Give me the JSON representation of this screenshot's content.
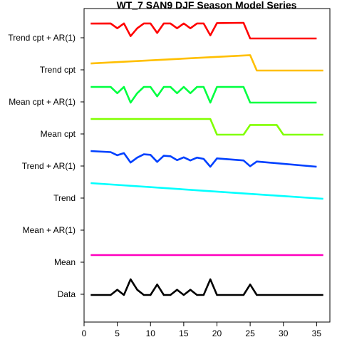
{
  "chart_data": {
    "type": "line",
    "title": "WT_7 SAN9 DJF Season Model Series",
    "xlabel": "",
    "ylabel": "",
    "xlim": [
      0,
      37
    ],
    "xticks": [
      0,
      5,
      10,
      15,
      20,
      25,
      30,
      35
    ],
    "grid": false,
    "legend": "none",
    "x": [
      1,
      2,
      3,
      4,
      5,
      6,
      7,
      8,
      9,
      10,
      11,
      12,
      13,
      14,
      15,
      16,
      17,
      18,
      19,
      20,
      21,
      22,
      23,
      24,
      25,
      26,
      27,
      28,
      29,
      30,
      31,
      32,
      33,
      34,
      35,
      36
    ],
    "rows": [
      {
        "label": "Trend cpt + AR(1)",
        "color": "#ff0000",
        "x": [
          1,
          4,
          5,
          6,
          7,
          8,
          9,
          10,
          11,
          12,
          13,
          14,
          15,
          16,
          17,
          18,
          19,
          20,
          24,
          25,
          35
        ],
        "values": [
          0.95,
          0.96,
          0.65,
          0.96,
          0.15,
          0.65,
          0.96,
          0.96,
          0.35,
          0.96,
          0.96,
          0.65,
          0.96,
          0.65,
          0.96,
          0.96,
          0.2,
          0.98,
          1.0,
          0.0,
          0.0
        ]
      },
      {
        "label": "Trend cpt",
        "color": "#ffbf00",
        "x": [
          1,
          25,
          26,
          36
        ],
        "values": [
          0.45,
          0.98,
          0.0,
          0.0
        ]
      },
      {
        "label": "Mean cpt + AR(1)",
        "color": "#00ff40",
        "x": [
          1,
          4,
          5,
          6,
          7,
          8,
          9,
          10,
          11,
          12,
          13,
          14,
          15,
          16,
          17,
          18,
          19,
          20,
          24,
          25,
          35
        ],
        "values": [
          1.0,
          1.0,
          0.6,
          1.0,
          0.0,
          0.6,
          1.0,
          1.0,
          0.4,
          1.0,
          1.0,
          0.6,
          1.0,
          0.6,
          1.0,
          1.0,
          0.0,
          1.0,
          1.0,
          0.0,
          0.0
        ]
      },
      {
        "label": "Mean cpt",
        "color": "#80ff00",
        "x": [
          1,
          19,
          20,
          24,
          25,
          29,
          30,
          36
        ],
        "values": [
          1.0,
          1.0,
          0.0,
          0.0,
          0.62,
          0.62,
          0.0,
          0.0
        ]
      },
      {
        "label": "Trend + AR(1)",
        "color": "#0040ff",
        "x": [
          1,
          4,
          5,
          6,
          7,
          8,
          9,
          10,
          11,
          12,
          13,
          14,
          15,
          16,
          17,
          18,
          19,
          20,
          24,
          25,
          26,
          35
        ],
        "values": [
          1.0,
          0.93,
          0.73,
          0.87,
          0.27,
          0.58,
          0.79,
          0.76,
          0.31,
          0.7,
          0.67,
          0.42,
          0.6,
          0.4,
          0.58,
          0.5,
          0.0,
          0.53,
          0.4,
          0.03,
          0.33,
          0.0
        ]
      },
      {
        "label": "Trend",
        "color": "#00ffff",
        "x": [
          1,
          36
        ],
        "values": [
          1.0,
          0.0
        ]
      },
      {
        "label": "Mean + AR(1)",
        "color": "#0080ff",
        "x": [],
        "values": []
      },
      {
        "label": "Mean",
        "color": "#ff00bf",
        "x": [
          1,
          36
        ],
        "values": [
          0.5,
          0.5
        ]
      },
      {
        "label": "Data",
        "color": "#000000",
        "x": [
          1,
          4,
          5,
          6,
          7,
          8,
          9,
          10,
          11,
          12,
          13,
          14,
          15,
          16,
          17,
          18,
          19,
          20,
          24,
          25,
          26,
          36
        ],
        "values": [
          0.0,
          0.0,
          0.33,
          0.0,
          1.0,
          0.33,
          0.0,
          0.0,
          0.67,
          0.0,
          0.0,
          0.33,
          0.0,
          0.33,
          0.0,
          0.0,
          1.0,
          0.0,
          0.0,
          0.67,
          0.0,
          0.0
        ]
      }
    ]
  }
}
